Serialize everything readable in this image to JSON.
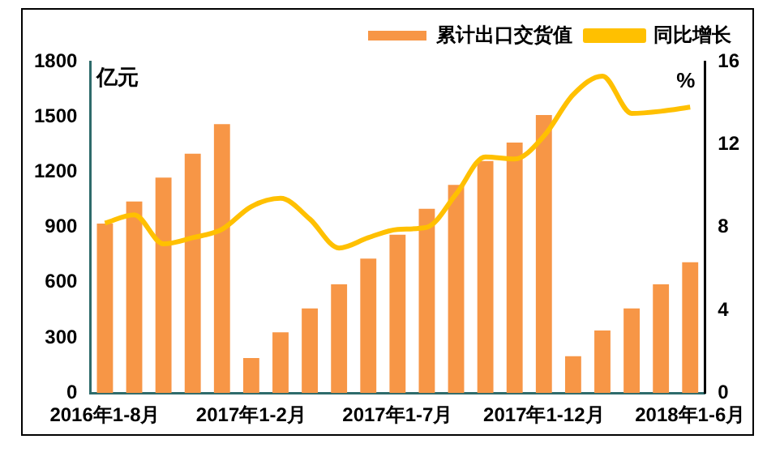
{
  "chart_data": {
    "type": "bar",
    "ylabel": "亿元",
    "y2label": "%",
    "categories": [
      "2016年1-8月",
      null,
      null,
      null,
      null,
      "2017年1-2月",
      null,
      null,
      null,
      null,
      "2017年1-7月",
      null,
      null,
      null,
      null,
      "2017年1-12月",
      null,
      null,
      null,
      null,
      "2018年1-6月"
    ],
    "series": [
      {
        "name": "累计出口交货值",
        "color": "#f79646",
        "values": [
          920,
          1040,
          1170,
          1300,
          1460,
          190,
          330,
          460,
          590,
          730,
          860,
          1000,
          1130,
          1260,
          1360,
          1510,
          200,
          340,
          460,
          590,
          710
        ]
      },
      {
        "name": "同比增长",
        "type": "line",
        "axis": "y2",
        "color": "#ffc000",
        "marker": "none",
        "values": [
          8.2,
          8.6,
          7.2,
          7.5,
          7.9,
          9.0,
          9.4,
          8.4,
          7.0,
          7.5,
          7.9,
          8.0,
          9.6,
          11.4,
          11.3,
          12.4,
          14.4,
          15.3,
          13.5,
          13.6,
          13.8
        ]
      }
    ],
    "ylim": [
      0,
      1800
    ],
    "yticks": [
      0,
      300,
      600,
      900,
      1200,
      1500,
      1800
    ],
    "y2lim": [
      0,
      16
    ],
    "y2ticks": [
      0,
      4,
      8,
      12,
      16
    ],
    "grid": false,
    "legend": "top"
  }
}
